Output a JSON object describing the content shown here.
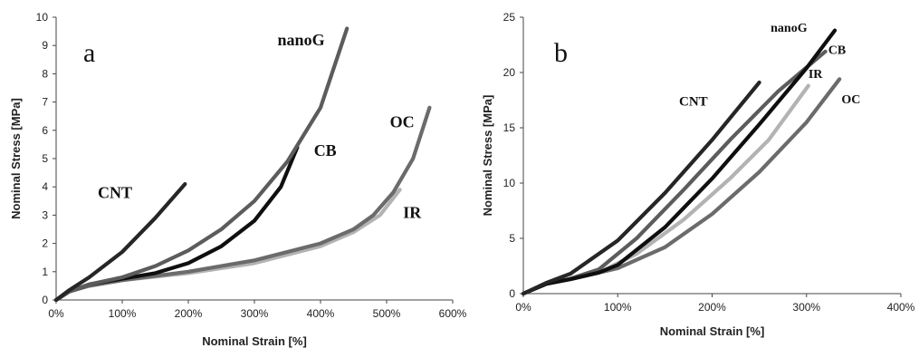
{
  "chart_data": [
    {
      "type": "line",
      "panel_label": "a",
      "xlabel": "Nominal Strain [%]",
      "ylabel": "Nominal Stress [MPa]",
      "xlim": [
        0,
        600
      ],
      "ylim": [
        0,
        10
      ],
      "x_ticks": [
        0,
        100,
        200,
        300,
        400,
        500,
        600
      ],
      "x_tick_labels": [
        "0%",
        "100%",
        "200%",
        "300%",
        "400%",
        "500%",
        "600%"
      ],
      "y_ticks": [
        0,
        1,
        2,
        3,
        4,
        5,
        6,
        7,
        8,
        9,
        10
      ],
      "y_tick_labels": [
        "0",
        "1",
        "2",
        "3",
        "4",
        "5",
        "6",
        "7",
        "8",
        "9",
        "10"
      ],
      "grid": false,
      "series": [
        {
          "name": "IR",
          "color": "#b3b3b3",
          "points": [
            [
              0,
              0
            ],
            [
              20,
              0.3
            ],
            [
              50,
              0.5
            ],
            [
              100,
              0.7
            ],
            [
              200,
              0.95
            ],
            [
              300,
              1.3
            ],
            [
              400,
              1.9
            ],
            [
              450,
              2.4
            ],
            [
              490,
              3.0
            ],
            [
              520,
              3.9
            ]
          ]
        },
        {
          "name": "OC",
          "color": "#6b6b6b",
          "points": [
            [
              0,
              0
            ],
            [
              20,
              0.3
            ],
            [
              50,
              0.5
            ],
            [
              100,
              0.7
            ],
            [
              200,
              1.0
            ],
            [
              300,
              1.4
            ],
            [
              400,
              2.0
            ],
            [
              450,
              2.5
            ],
            [
              480,
              3.0
            ],
            [
              510,
              3.8
            ],
            [
              540,
              5.0
            ],
            [
              565,
              6.8
            ]
          ]
        },
        {
          "name": "CB",
          "color": "#0f0f0f",
          "points": [
            [
              0,
              0
            ],
            [
              20,
              0.3
            ],
            [
              50,
              0.55
            ],
            [
              100,
              0.75
            ],
            [
              150,
              0.95
            ],
            [
              200,
              1.3
            ],
            [
              250,
              1.9
            ],
            [
              300,
              2.8
            ],
            [
              340,
              4.0
            ],
            [
              365,
              5.4
            ]
          ]
        },
        {
          "name": "nanoG",
          "color": "#5c5c5c",
          "points": [
            [
              0,
              0
            ],
            [
              20,
              0.3
            ],
            [
              50,
              0.55
            ],
            [
              100,
              0.8
            ],
            [
              150,
              1.2
            ],
            [
              200,
              1.75
            ],
            [
              250,
              2.5
            ],
            [
              300,
              3.5
            ],
            [
              350,
              4.9
            ],
            [
              400,
              6.8
            ],
            [
              440,
              9.6
            ]
          ]
        },
        {
          "name": "CNT",
          "color": "#262626",
          "points": [
            [
              0,
              0
            ],
            [
              20,
              0.35
            ],
            [
              50,
              0.8
            ],
            [
              100,
              1.7
            ],
            [
              150,
              2.9
            ],
            [
              195,
              4.1
            ]
          ]
        }
      ],
      "annotations": [
        {
          "text": "nanoG",
          "x": 335,
          "y": 9.0,
          "size": 18
        },
        {
          "text": "CB",
          "x": 390,
          "y": 5.1,
          "size": 18
        },
        {
          "text": "OC",
          "x": 505,
          "y": 6.1,
          "size": 18
        },
        {
          "text": "IR",
          "x": 525,
          "y": 2.9,
          "size": 18
        },
        {
          "text": "CNT",
          "x": 63,
          "y": 3.6,
          "size": 18
        }
      ]
    },
    {
      "type": "line",
      "panel_label": "b",
      "xlabel": "Nominal Strain [%]",
      "ylabel": "Nominal Stress [MPa]",
      "xlim": [
        0,
        400
      ],
      "ylim": [
        0,
        25
      ],
      "x_ticks": [
        0,
        100,
        200,
        300,
        400
      ],
      "x_tick_labels": [
        "0%",
        "100%",
        "200%",
        "300%",
        "400%"
      ],
      "y_ticks": [
        0,
        5,
        10,
        15,
        20,
        25
      ],
      "y_tick_labels": [
        "0",
        "5",
        "10",
        "15",
        "20",
        "25"
      ],
      "grid": false,
      "series": [
        {
          "name": "OC",
          "color": "#6b6b6b",
          "points": [
            [
              0,
              0
            ],
            [
              25,
              0.9
            ],
            [
              50,
              1.3
            ],
            [
              100,
              2.3
            ],
            [
              150,
              4.2
            ],
            [
              200,
              7.2
            ],
            [
              250,
              11.0
            ],
            [
              300,
              15.5
            ],
            [
              335,
              19.4
            ]
          ]
        },
        {
          "name": "IR",
          "color": "#b3b3b3",
          "points": [
            [
              0,
              0
            ],
            [
              25,
              0.9
            ],
            [
              50,
              1.3
            ],
            [
              80,
              1.9
            ],
            [
              120,
              3.6
            ],
            [
              170,
              6.7
            ],
            [
              220,
              10.5
            ],
            [
              260,
              13.9
            ],
            [
              302,
              18.8
            ]
          ]
        },
        {
          "name": "CB",
          "color": "#5c5c5c",
          "points": [
            [
              0,
              0
            ],
            [
              25,
              0.9
            ],
            [
              50,
              1.35
            ],
            [
              80,
              2.2
            ],
            [
              120,
              5.0
            ],
            [
              170,
              9.4
            ],
            [
              220,
              14.0
            ],
            [
              270,
              18.3
            ],
            [
              320,
              21.9
            ]
          ]
        },
        {
          "name": "nanoG",
          "color": "#0f0f0f",
          "points": [
            [
              0,
              0
            ],
            [
              25,
              0.9
            ],
            [
              50,
              1.3
            ],
            [
              80,
              1.9
            ],
            [
              100,
              2.6
            ],
            [
              150,
              6.0
            ],
            [
              200,
              10.4
            ],
            [
              250,
              15.3
            ],
            [
              300,
              20.4
            ],
            [
              330,
              23.8
            ]
          ]
        },
        {
          "name": "CNT",
          "color": "#262626",
          "points": [
            [
              0,
              0
            ],
            [
              25,
              1.0
            ],
            [
              50,
              1.8
            ],
            [
              100,
              4.8
            ],
            [
              150,
              9.1
            ],
            [
              200,
              13.9
            ],
            [
              250,
              19.1
            ]
          ]
        }
      ],
      "annotations": [
        {
          "text": "nanoG",
          "x": 262,
          "y": 23.7,
          "size": 14
        },
        {
          "text": "CB",
          "x": 323,
          "y": 21.7,
          "size": 14
        },
        {
          "text": "IR",
          "x": 302,
          "y": 19.5,
          "size": 14
        },
        {
          "text": "OC",
          "x": 337,
          "y": 17.2,
          "size": 14
        },
        {
          "text": "CNT",
          "x": 165,
          "y": 17.0,
          "size": 15
        }
      ]
    }
  ]
}
